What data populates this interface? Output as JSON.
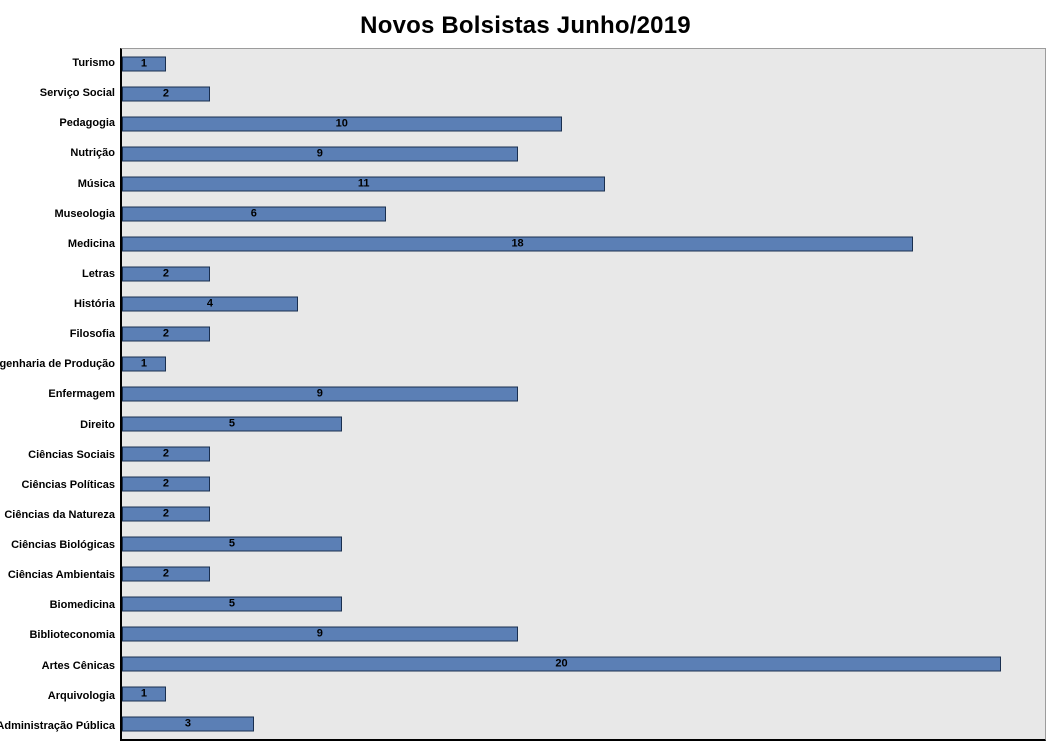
{
  "chart_data": {
    "type": "bar",
    "orientation": "horizontal",
    "title": "Novos Bolsistas Junho/2019",
    "categories": [
      "Turismo",
      "Serviço Social",
      "Pedagogia",
      "Nutrição",
      "Música",
      "Museologia",
      "Medicina",
      "Letras",
      "História",
      "Filosofia",
      "Engenharia de Produção",
      "Enfermagem",
      "Direito",
      "Ciências Sociais",
      "Ciências Políticas",
      "Ciências da Natureza",
      "Ciências Biológicas",
      "Ciências Ambientais",
      "Biomedicina",
      "Biblioteconomia",
      "Artes Cênicas",
      "Arquivologia",
      "Administração Pública"
    ],
    "values": [
      1,
      2,
      10,
      9,
      11,
      6,
      18,
      2,
      4,
      2,
      1,
      9,
      5,
      2,
      2,
      2,
      5,
      2,
      5,
      9,
      20,
      1,
      3
    ],
    "xlim": [
      0,
      21
    ],
    "data_labels": true,
    "legend": "none",
    "grid": false,
    "colors": {
      "bar_fill": "#5B7FB5",
      "bar_border": "#1A2F4F",
      "plot_background": "#E8E8E8",
      "plot_border": "#9C9C9C",
      "axis_line": "#000000",
      "label_color": "#000000",
      "title_color": "#000000"
    }
  }
}
